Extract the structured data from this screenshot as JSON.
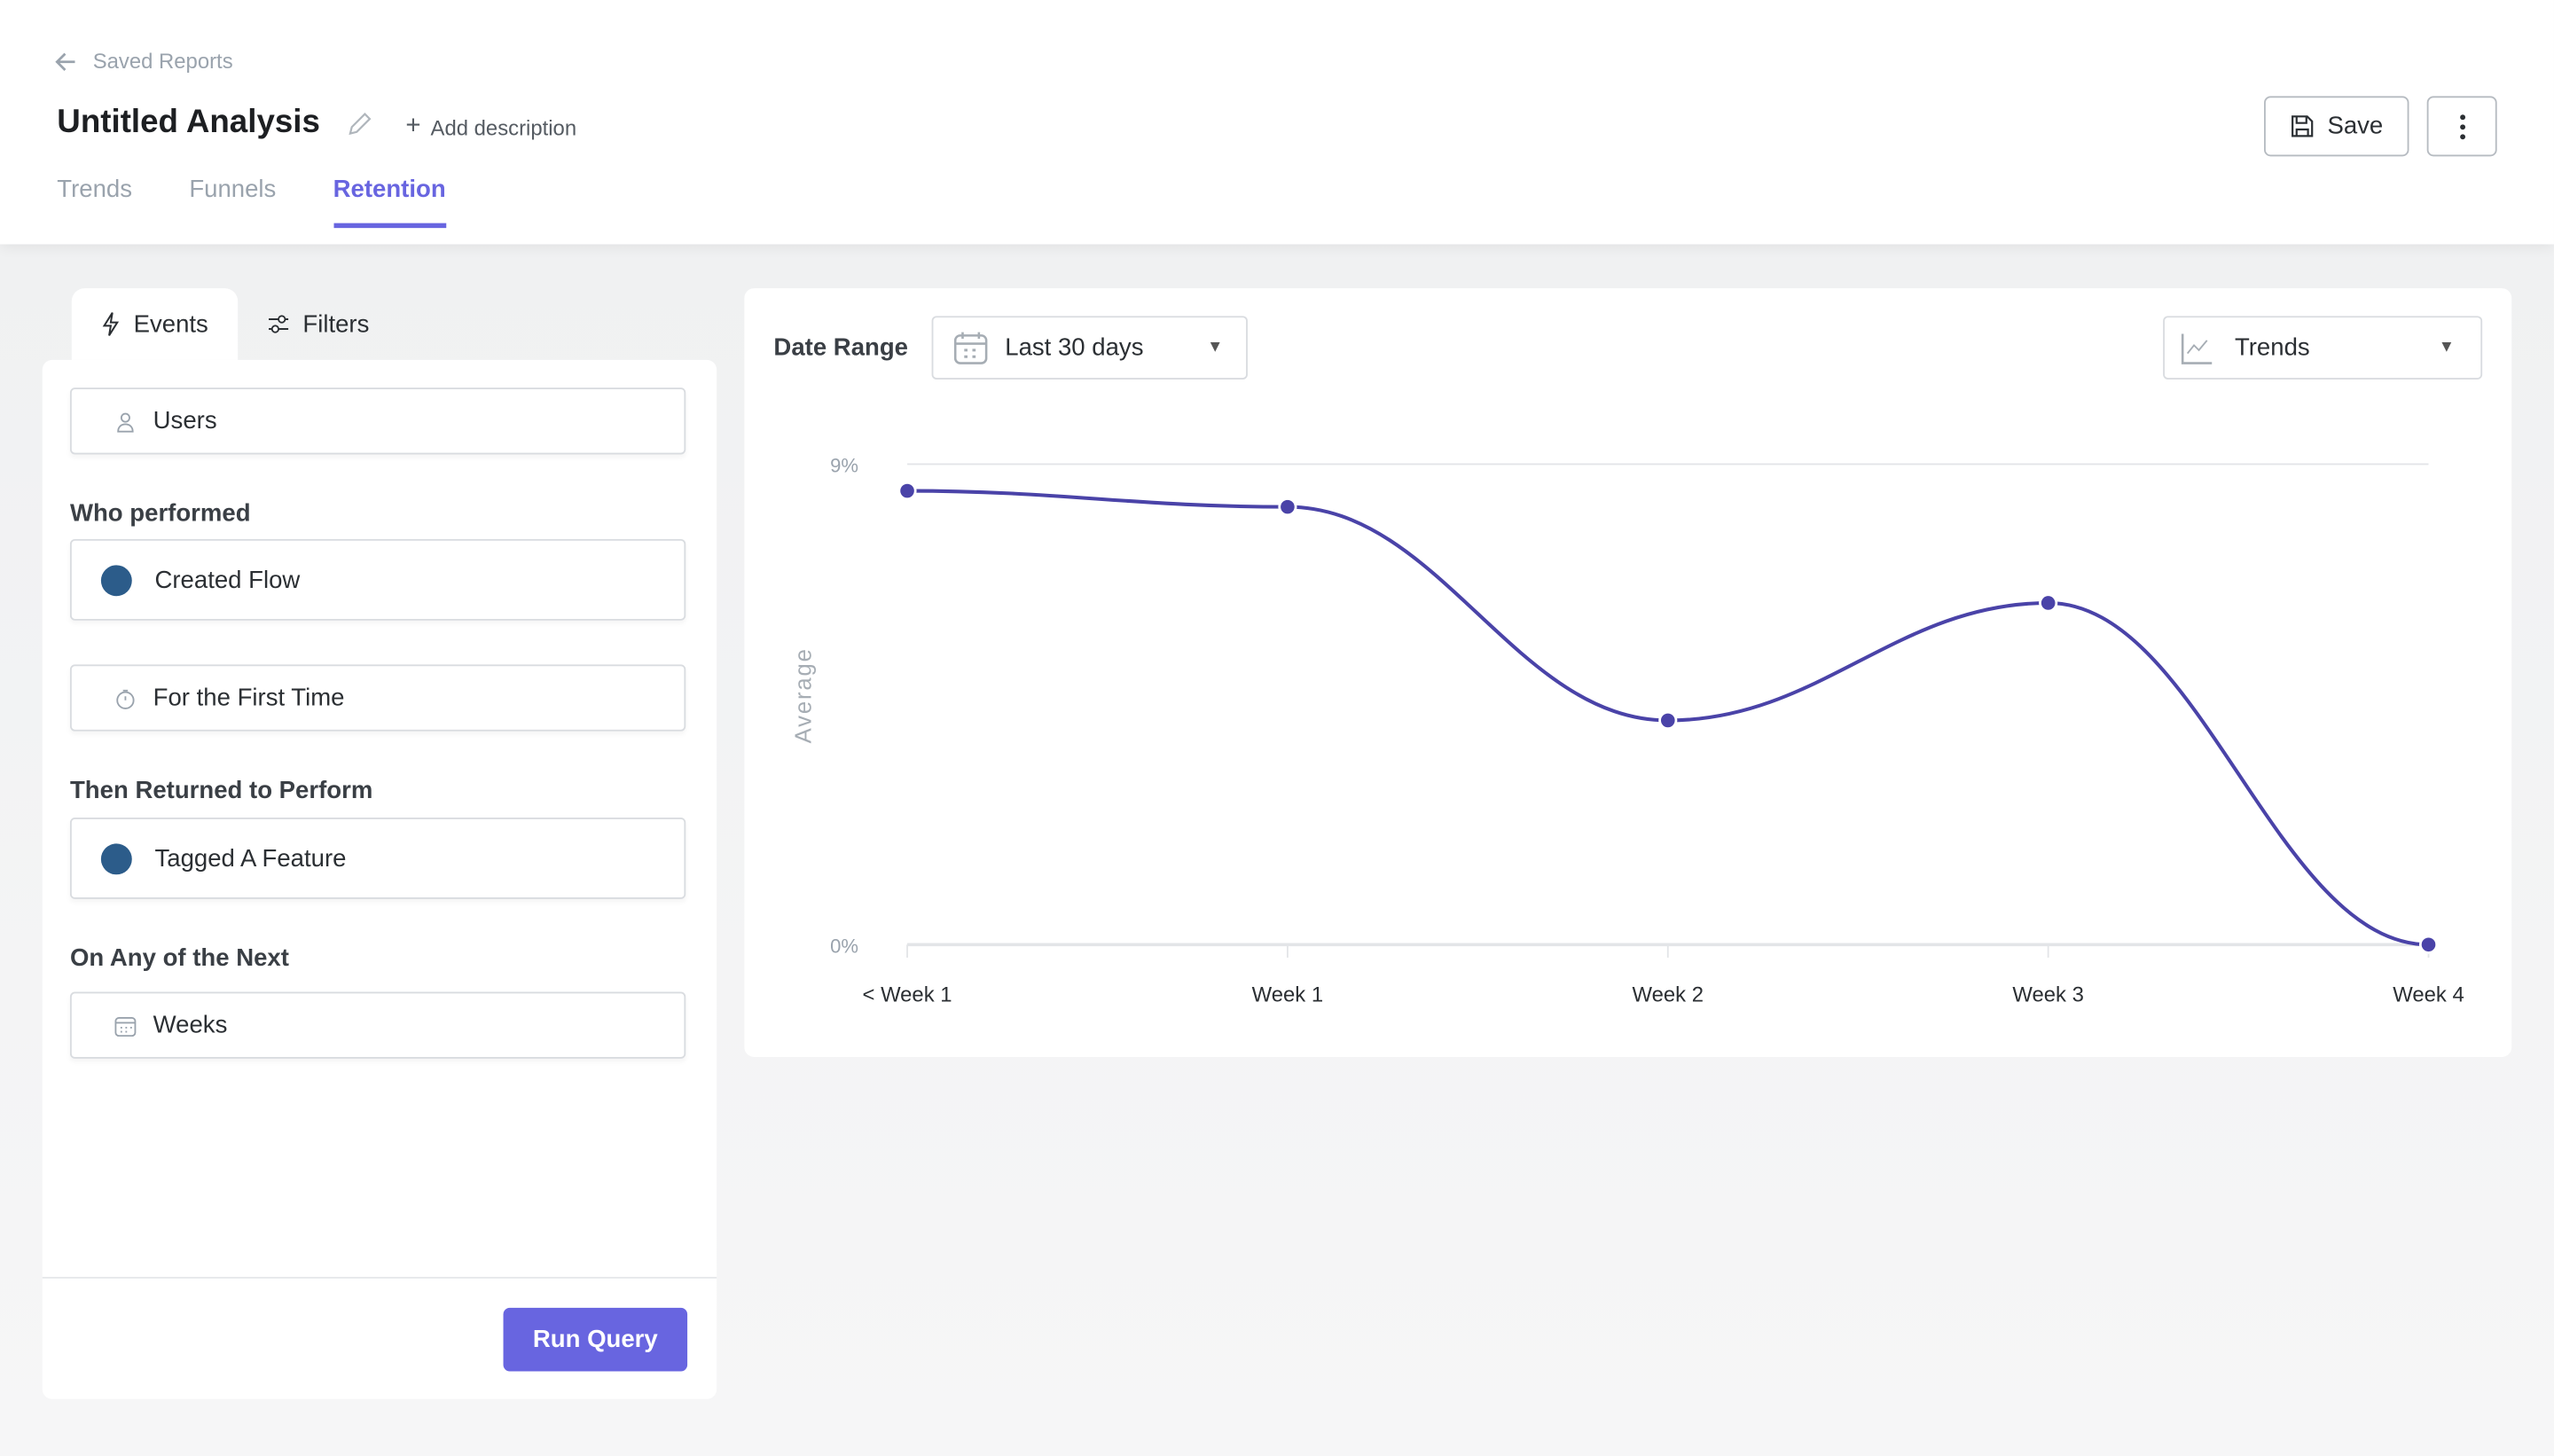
{
  "header": {
    "back_label": "Saved Reports",
    "title": "Untitled Analysis",
    "add_description": "Add description",
    "save_label": "Save",
    "tabs": [
      {
        "label": "Trends"
      },
      {
        "label": "Funnels"
      },
      {
        "label": "Retention"
      }
    ],
    "active_tab": "Retention"
  },
  "left": {
    "tabs": [
      {
        "label": "Events"
      },
      {
        "label": "Filters"
      }
    ],
    "entity": "Users",
    "who_performed_label": "Who performed",
    "first_event": "Created Flow",
    "frequency": "For the First Time",
    "returned_label": "Then Returned to Perform",
    "return_event": "Tagged A Feature",
    "period_label": "On Any of the Next",
    "period": "Weeks",
    "run_label": "Run Query",
    "event_color": "#2c5c8a"
  },
  "chart_panel": {
    "date_range_label": "Date Range",
    "date_range_value": "Last 30 days",
    "view_value": "Trends"
  },
  "chart_data": {
    "type": "line",
    "categories": [
      "< Week 1",
      "Week 1",
      "Week 2",
      "Week 3",
      "Week 4"
    ],
    "values": [
      8.5,
      8.2,
      4.2,
      6.4,
      0
    ],
    "ylabel": "Average",
    "xlabel": "",
    "ylim": [
      0,
      9
    ],
    "yticks": [
      "0%",
      "9%"
    ],
    "grid": true,
    "color": "#4a43a8",
    "accent": "#6865e0"
  }
}
